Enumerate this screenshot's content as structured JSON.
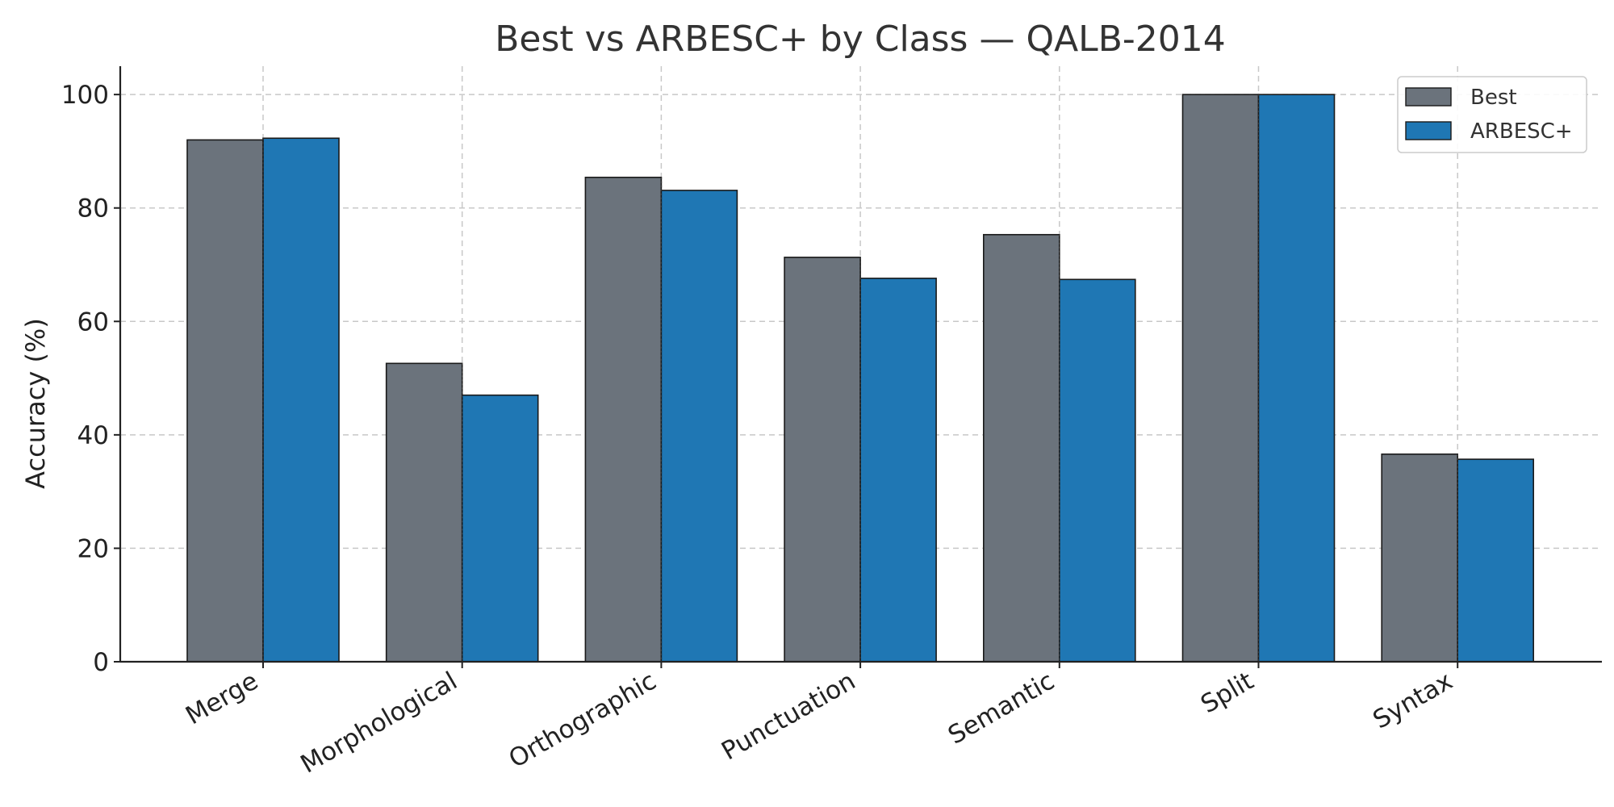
{
  "chart_data": {
    "type": "bar",
    "title": "Best vs ARBESC+ by Class — QALB-2014",
    "xlabel": "",
    "ylabel": "Accuracy (%)",
    "categories": [
      "Merge",
      "Morphological",
      "Orthographic",
      "Punctuation",
      "Semantic",
      "Split",
      "Syntax"
    ],
    "series": [
      {
        "name": "Best",
        "color": "#6b737c",
        "values": [
          92.0,
          52.6,
          85.4,
          71.3,
          75.3,
          100.0,
          36.6
        ]
      },
      {
        "name": "ARBESC+",
        "color": "#1f77b4",
        "values": [
          92.3,
          47.0,
          83.1,
          67.6,
          67.4,
          100.0,
          35.7
        ]
      }
    ],
    "ylim": [
      0,
      105
    ],
    "yticks": [
      0,
      20,
      40,
      60,
      80,
      100
    ],
    "grid": true,
    "legend": "top-right"
  }
}
